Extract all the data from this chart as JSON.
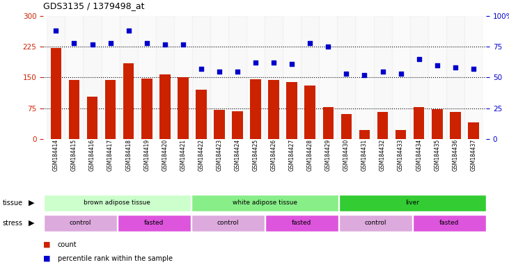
{
  "title": "GDS3135 / 1379498_at",
  "samples": [
    "GSM184414",
    "GSM184415",
    "GSM184416",
    "GSM184417",
    "GSM184418",
    "GSM184419",
    "GSM184420",
    "GSM184421",
    "GSM184422",
    "GSM184423",
    "GSM184424",
    "GSM184425",
    "GSM184426",
    "GSM184427",
    "GSM184428",
    "GSM184429",
    "GSM184430",
    "GSM184431",
    "GSM184432",
    "GSM184433",
    "GSM184434",
    "GSM184435",
    "GSM184436",
    "GSM184437"
  ],
  "counts": [
    222,
    143,
    103,
    143,
    185,
    148,
    157,
    150,
    120,
    70,
    68,
    145,
    143,
    138,
    130,
    78,
    60,
    22,
    65,
    22,
    78,
    72,
    65,
    40
  ],
  "percentiles": [
    88,
    78,
    77,
    78,
    88,
    78,
    77,
    77,
    57,
    55,
    55,
    62,
    62,
    61,
    78,
    75,
    53,
    52,
    55,
    53,
    65,
    60,
    58,
    57
  ],
  "bar_color": "#cc2200",
  "dot_color": "#0000cc",
  "ylim_left": [
    0,
    300
  ],
  "ylim_right": [
    0,
    100
  ],
  "yticks_left": [
    0,
    75,
    150,
    225,
    300
  ],
  "yticks_right": [
    0,
    25,
    50,
    75,
    100
  ],
  "hlines": [
    75,
    150,
    225
  ],
  "tissue_groups": [
    {
      "label": "brown adipose tissue",
      "start": 0,
      "end": 8,
      "color": "#ccffcc"
    },
    {
      "label": "white adipose tissue",
      "start": 8,
      "end": 16,
      "color": "#88ee88"
    },
    {
      "label": "liver",
      "start": 16,
      "end": 24,
      "color": "#33cc33"
    }
  ],
  "stress_groups": [
    {
      "label": "control",
      "start": 0,
      "end": 4,
      "color": "#ddaadd"
    },
    {
      "label": "fasted",
      "start": 4,
      "end": 8,
      "color": "#dd55dd"
    },
    {
      "label": "control",
      "start": 8,
      "end": 12,
      "color": "#ddaadd"
    },
    {
      "label": "fasted",
      "start": 12,
      "end": 16,
      "color": "#dd55dd"
    },
    {
      "label": "control",
      "start": 16,
      "end": 20,
      "color": "#ddaadd"
    },
    {
      "label": "fasted",
      "start": 20,
      "end": 24,
      "color": "#dd55dd"
    }
  ],
  "tissue_label": "tissue",
  "stress_label": "stress",
  "legend_count_label": "count",
  "legend_pct_label": "percentile rank within the sample",
  "bg_color": "#ffffff",
  "plot_bg_color": "#ffffff",
  "axis_label_color_left": "#cc2200",
  "axis_label_color_right": "#0000cc"
}
